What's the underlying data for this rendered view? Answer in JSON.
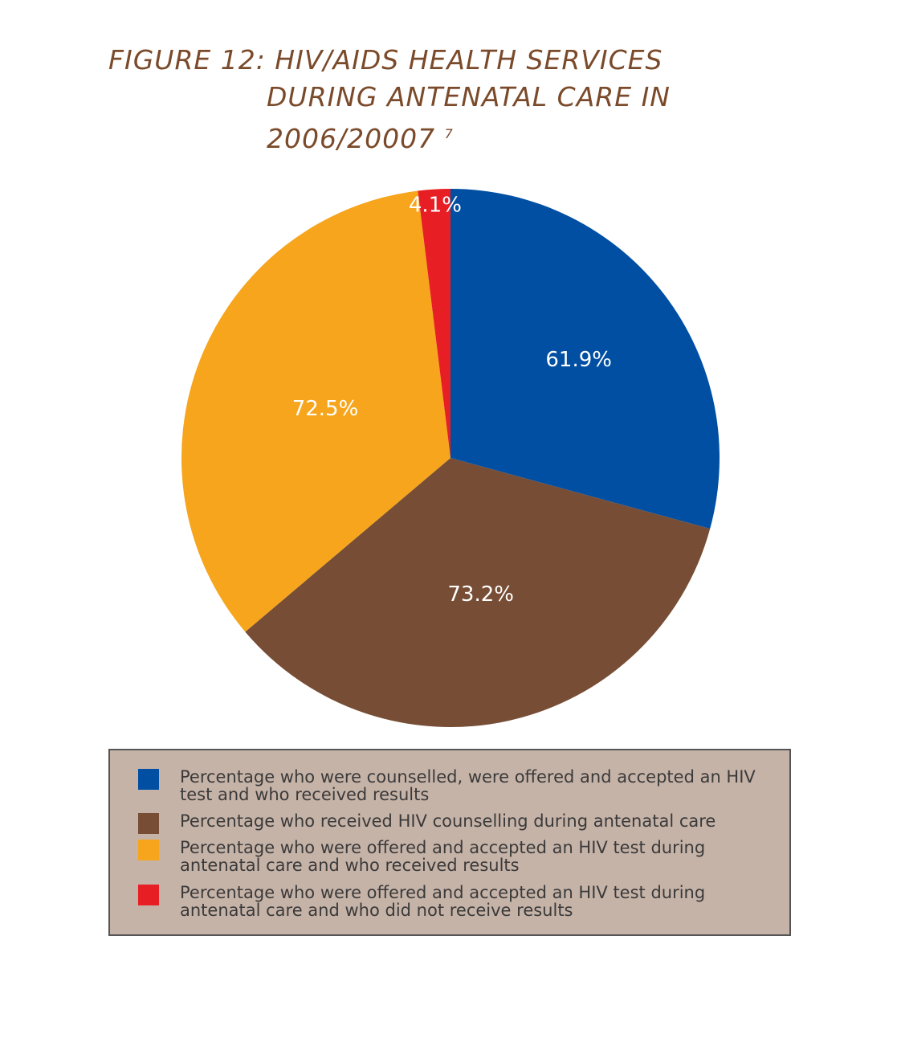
{
  "figure": {
    "title_line_1": "FIGURE 12: HIV/AIDS HEALTH SERVICES",
    "title_line_2": "DURING ANTENATAL CARE  IN",
    "title_line_3": "2006/20007",
    "title_footnote": "7"
  },
  "chart_data": {
    "type": "pie",
    "title": "FIGURE 12: HIV/AIDS HEALTH SERVICES DURING ANTENATAL CARE IN 2006/20007",
    "legend_position": "bottom",
    "slices": [
      {
        "label": "Percentage who were counselled, were offered and accepted an HIV test and who received results",
        "value": 61.9,
        "value_label": "61.9%",
        "color": "#004fa3"
      },
      {
        "label": "Percentage who received HIV counselling during antenatal care",
        "value": 73.2,
        "value_label": "73.2%",
        "color": "#774d35"
      },
      {
        "label": "Percentage who were offered and accepted an HIV test during antenatal care and who received results",
        "value": 72.5,
        "value_label": "72.5%",
        "color": "#f6a51c"
      },
      {
        "label": "Percentage who were offered and accepted an HIV test during antenatal care and who did not receive results",
        "value": 4.1,
        "value_label": "4.1%",
        "color": "#e81e25"
      }
    ]
  }
}
